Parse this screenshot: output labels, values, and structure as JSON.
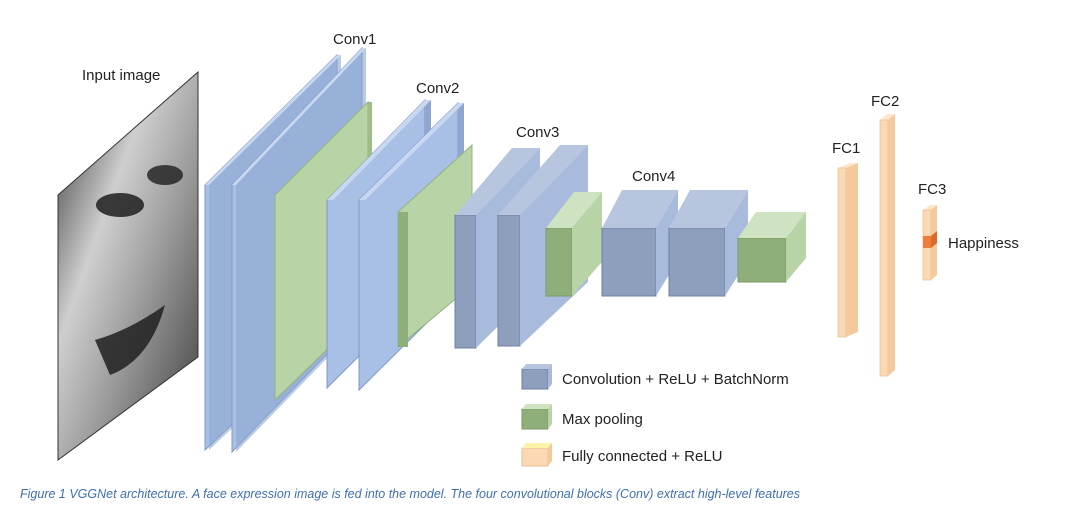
{
  "labels": {
    "input": "Input image",
    "conv1": "Conv1",
    "conv2": "Conv2",
    "conv3": "Conv3",
    "conv4": "Conv4",
    "fc1": "FC1",
    "fc2": "FC2",
    "fc3": "FC3",
    "output": "Happiness"
  },
  "legend": {
    "conv": "Convolution + ReLU + BatchNorm",
    "pool": "Max pooling",
    "fc": "Fully connected + ReLU"
  },
  "colors": {
    "conv": "#a9c0e6",
    "conv_deep": "#8e9fbd",
    "pool": "#b8d4a6",
    "fc": "#fbd9b5",
    "output": "#f07c3a",
    "caption": "#3f6fb0"
  },
  "caption": "Figure 1 VGGNet architecture. A face expression image is fed into the model. The four convolutional blocks (Conv) extract high-level features"
}
